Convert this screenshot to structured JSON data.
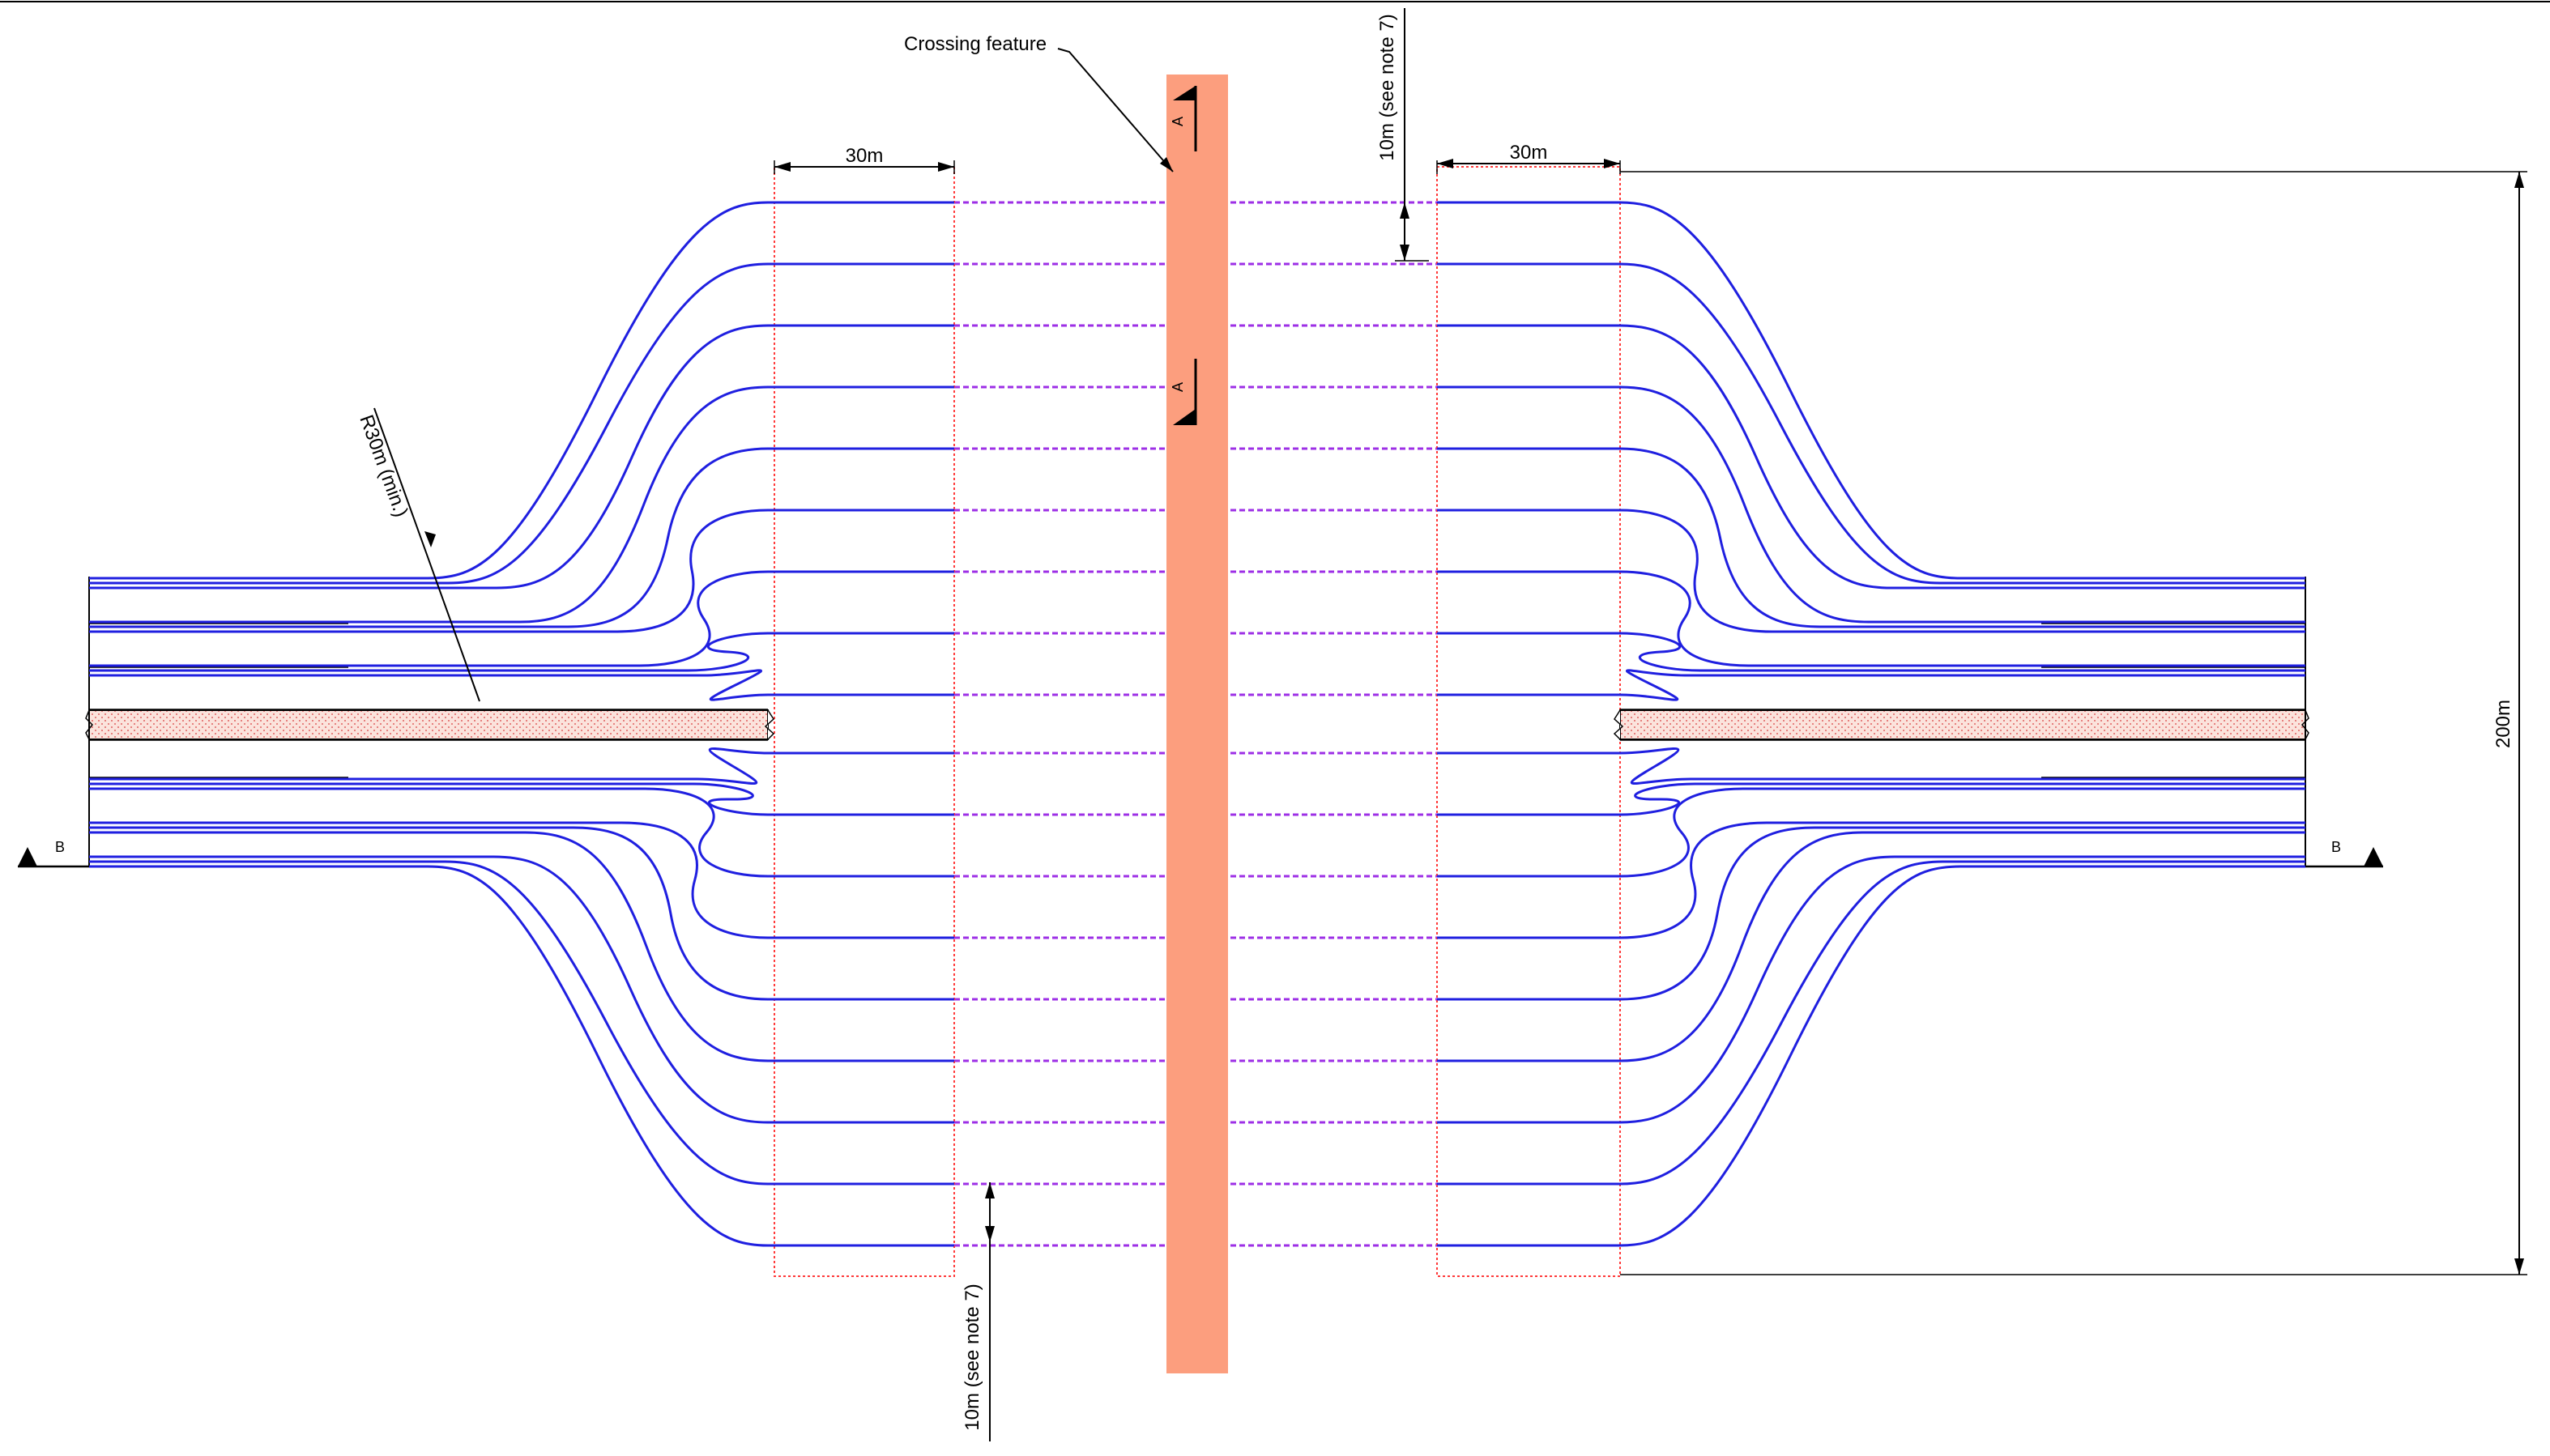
{
  "labels": {
    "crossing_feature": "Crossing feature",
    "radius": "R30m (min.)",
    "offset_top": "10m (see note 7)",
    "offset_bottom": "10m (see note 7)",
    "width_left": "30m",
    "width_right": "30m",
    "total_height": "200m",
    "section_a_top": "A",
    "section_a_bottom": "A",
    "section_b_left": "B",
    "section_b_right": "B"
  },
  "colors": {
    "duct_line": "#1f1fe0",
    "dashed_line": "#9d2fe6",
    "crossing_fill": "#fc9e7e",
    "zone_outline": "#ff3a3a",
    "median_fill": "#fbe3dc",
    "median_dots": "#e06060"
  },
  "ducts": {
    "count_per_side": 9
  }
}
